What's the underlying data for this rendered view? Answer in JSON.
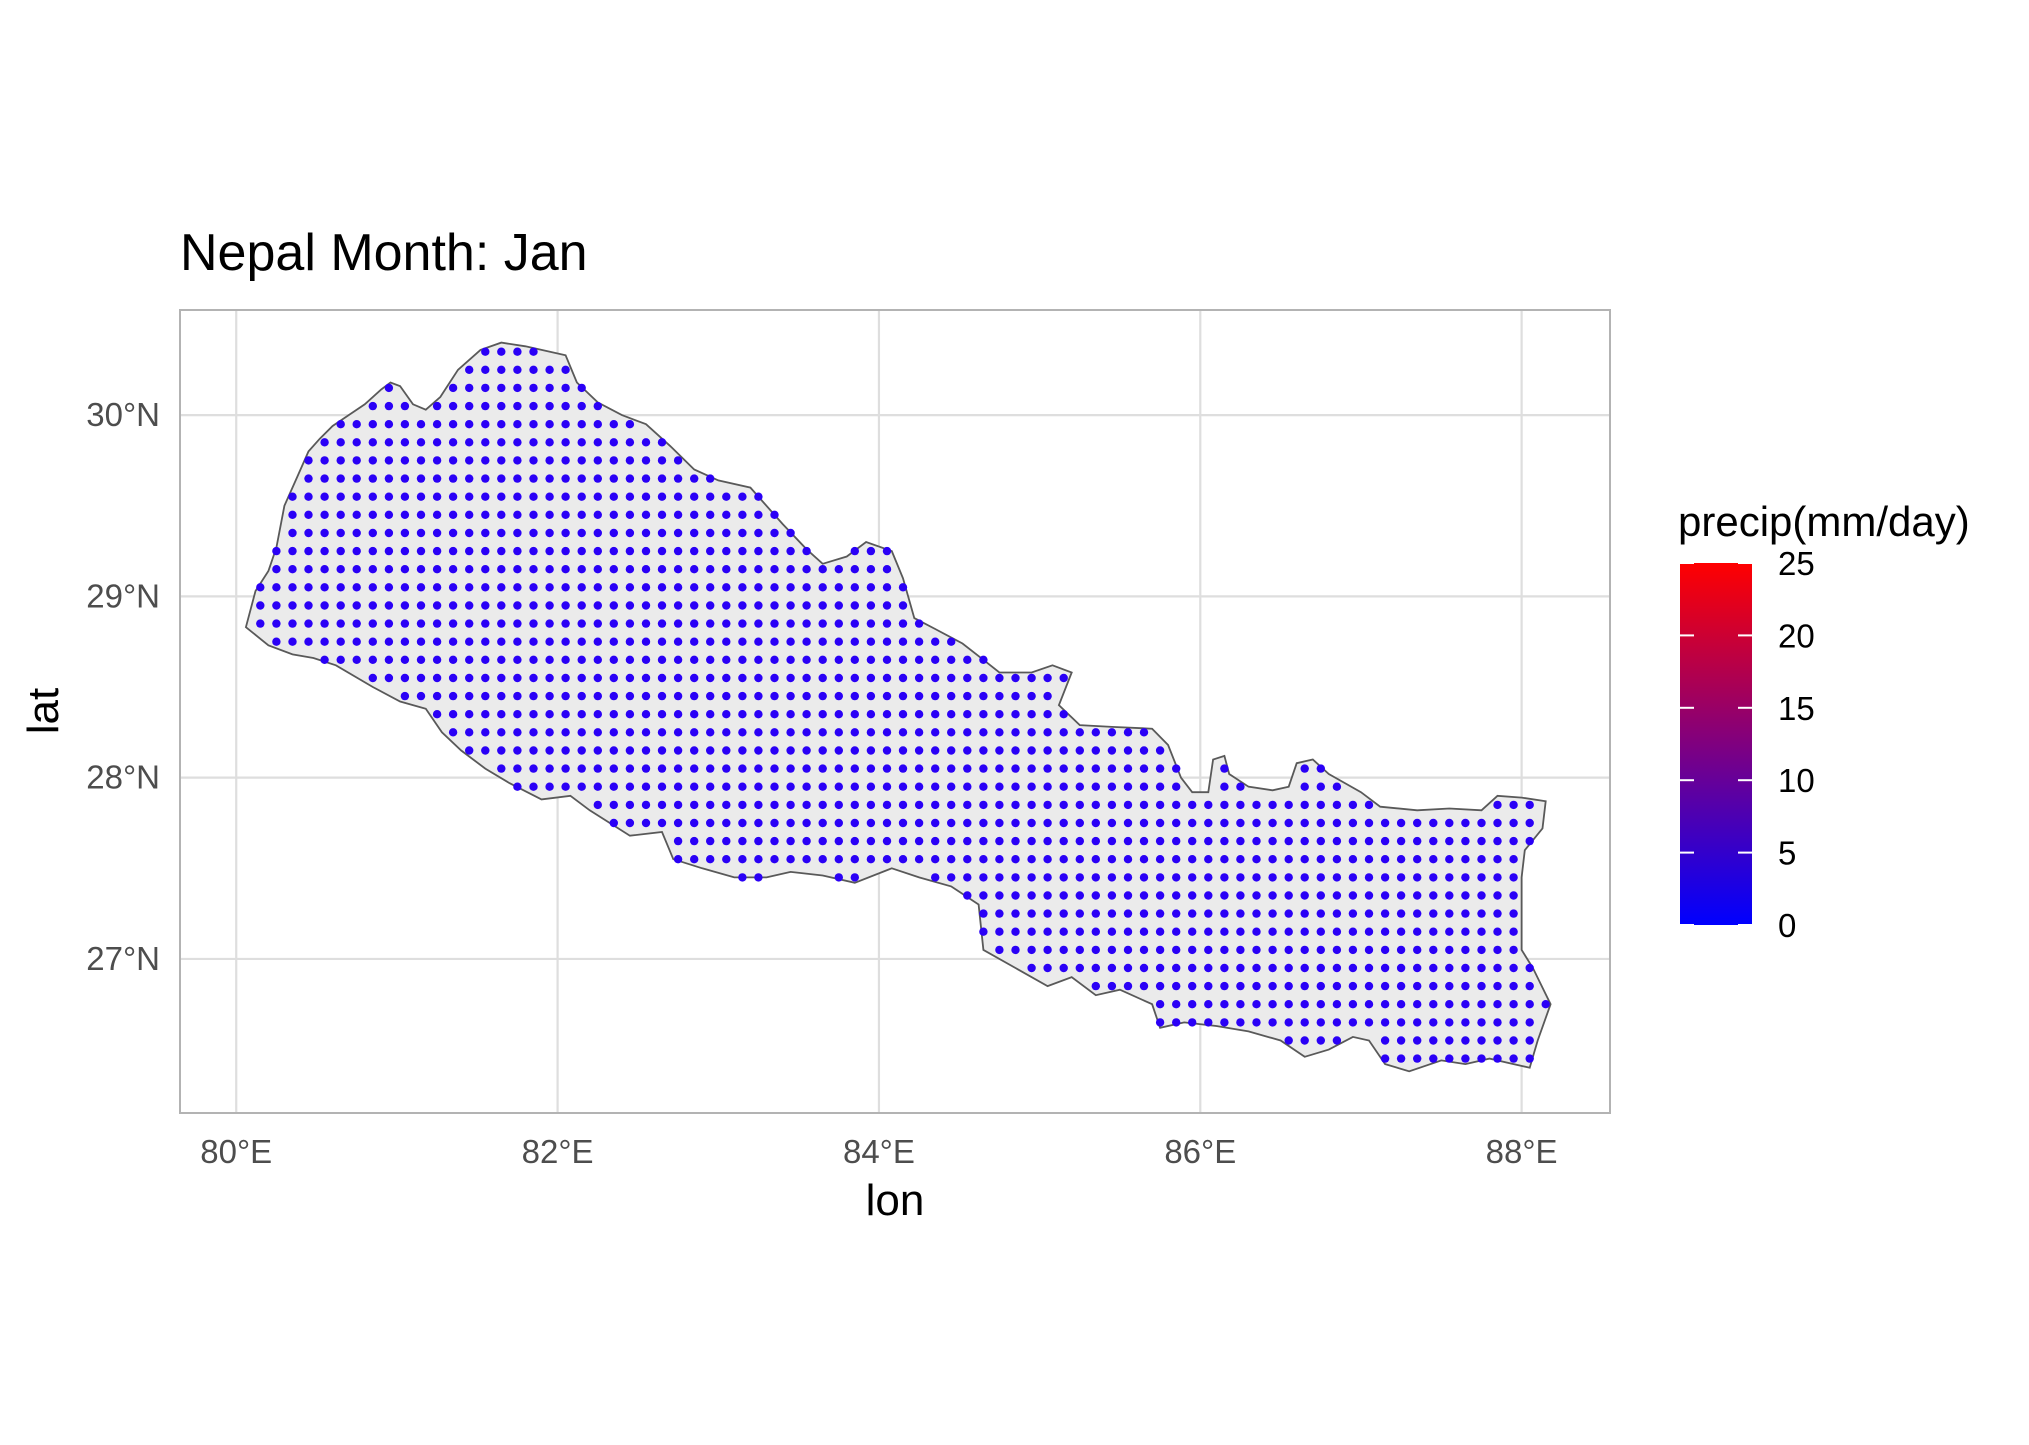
{
  "chart_data": {
    "type": "scatter",
    "title": "Nepal Month: Jan",
    "xlabel": "lon",
    "ylabel": "lat",
    "xlim": [
      79.65,
      88.55
    ],
    "ylim": [
      26.15,
      30.58
    ],
    "x_ticks": [
      80,
      82,
      84,
      86,
      88
    ],
    "x_tick_labels": [
      "80°E",
      "82°E",
      "84°E",
      "86°E",
      "88°E"
    ],
    "y_ticks": [
      27,
      28,
      29,
      30
    ],
    "y_tick_labels": [
      "27°N",
      "28°N",
      "29°N",
      "30°N"
    ],
    "grid": true,
    "grid_spacing_degrees": 0.1,
    "point_values": "precipitation near 0–1 mm/day at every grid point (all points plotted blue)",
    "legend": {
      "title": "precip(mm/day)",
      "placement": "right",
      "min": 0,
      "max": 25,
      "ticks": [
        0,
        5,
        10,
        15,
        20,
        25
      ],
      "colors": [
        "#0000ff",
        "#ff0000"
      ]
    },
    "boundary_lon_lat": [
      [
        80.06,
        28.83
      ],
      [
        80.12,
        29.03
      ],
      [
        80.2,
        29.14
      ],
      [
        80.25,
        29.27
      ],
      [
        80.3,
        29.5
      ],
      [
        80.38,
        29.66
      ],
      [
        80.45,
        29.8
      ],
      [
        80.52,
        29.87
      ],
      [
        80.6,
        29.94
      ],
      [
        80.7,
        30.0
      ],
      [
        80.8,
        30.06
      ],
      [
        80.9,
        30.14
      ],
      [
        80.96,
        30.18
      ],
      [
        81.02,
        30.16
      ],
      [
        81.1,
        30.06
      ],
      [
        81.18,
        30.03
      ],
      [
        81.27,
        30.1
      ],
      [
        81.38,
        30.25
      ],
      [
        81.52,
        30.36
      ],
      [
        81.65,
        30.4
      ],
      [
        81.8,
        30.38
      ],
      [
        82.05,
        30.33
      ],
      [
        82.12,
        30.18
      ],
      [
        82.25,
        30.07
      ],
      [
        82.4,
        30.0
      ],
      [
        82.55,
        29.95
      ],
      [
        82.7,
        29.83
      ],
      [
        82.85,
        29.7
      ],
      [
        83.0,
        29.64
      ],
      [
        83.2,
        29.6
      ],
      [
        83.4,
        29.4
      ],
      [
        83.55,
        29.26
      ],
      [
        83.65,
        29.18
      ],
      [
        83.8,
        29.22
      ],
      [
        83.92,
        29.3
      ],
      [
        84.08,
        29.25
      ],
      [
        84.15,
        29.1
      ],
      [
        84.22,
        28.88
      ],
      [
        84.35,
        28.82
      ],
      [
        84.52,
        28.74
      ],
      [
        84.65,
        28.65
      ],
      [
        84.75,
        28.58
      ],
      [
        84.95,
        28.58
      ],
      [
        85.08,
        28.62
      ],
      [
        85.2,
        28.58
      ],
      [
        85.12,
        28.4
      ],
      [
        85.25,
        28.29
      ],
      [
        85.45,
        28.28
      ],
      [
        85.7,
        28.27
      ],
      [
        85.8,
        28.18
      ],
      [
        85.88,
        28.0
      ],
      [
        85.95,
        27.92
      ],
      [
        86.05,
        27.92
      ],
      [
        86.08,
        28.1
      ],
      [
        86.15,
        28.12
      ],
      [
        86.18,
        28.02
      ],
      [
        86.3,
        27.95
      ],
      [
        86.45,
        27.93
      ],
      [
        86.55,
        27.95
      ],
      [
        86.6,
        28.08
      ],
      [
        86.7,
        28.1
      ],
      [
        86.8,
        28.02
      ],
      [
        86.9,
        27.97
      ],
      [
        87.0,
        27.92
      ],
      [
        87.12,
        27.84
      ],
      [
        87.35,
        27.82
      ],
      [
        87.55,
        27.83
      ],
      [
        87.75,
        27.82
      ],
      [
        87.85,
        27.9
      ],
      [
        88.0,
        27.89
      ],
      [
        88.15,
        27.87
      ],
      [
        88.13,
        27.72
      ],
      [
        88.02,
        27.6
      ],
      [
        88.0,
        27.45
      ],
      [
        88.0,
        27.25
      ],
      [
        88.0,
        27.05
      ],
      [
        88.07,
        26.95
      ],
      [
        88.18,
        26.75
      ],
      [
        88.1,
        26.55
      ],
      [
        88.05,
        26.4
      ],
      [
        87.95,
        26.42
      ],
      [
        87.8,
        26.45
      ],
      [
        87.65,
        26.42
      ],
      [
        87.5,
        26.44
      ],
      [
        87.3,
        26.38
      ],
      [
        87.15,
        26.42
      ],
      [
        87.05,
        26.55
      ],
      [
        86.95,
        26.57
      ],
      [
        86.8,
        26.5
      ],
      [
        86.65,
        26.46
      ],
      [
        86.5,
        26.55
      ],
      [
        86.3,
        26.6
      ],
      [
        86.1,
        26.63
      ],
      [
        85.9,
        26.65
      ],
      [
        85.75,
        26.62
      ],
      [
        85.7,
        26.75
      ],
      [
        85.5,
        26.83
      ],
      [
        85.35,
        26.8
      ],
      [
        85.2,
        26.9
      ],
      [
        85.05,
        26.85
      ],
      [
        84.85,
        26.95
      ],
      [
        84.65,
        27.05
      ],
      [
        84.62,
        27.3
      ],
      [
        84.45,
        27.4
      ],
      [
        84.25,
        27.45
      ],
      [
        84.08,
        27.5
      ],
      [
        83.85,
        27.42
      ],
      [
        83.65,
        27.46
      ],
      [
        83.45,
        27.48
      ],
      [
        83.3,
        27.45
      ],
      [
        83.1,
        27.45
      ],
      [
        82.9,
        27.5
      ],
      [
        82.72,
        27.55
      ],
      [
        82.65,
        27.7
      ],
      [
        82.45,
        27.68
      ],
      [
        82.2,
        27.82
      ],
      [
        82.08,
        27.9
      ],
      [
        81.9,
        27.88
      ],
      [
        81.7,
        27.97
      ],
      [
        81.55,
        28.05
      ],
      [
        81.4,
        28.15
      ],
      [
        81.28,
        28.25
      ],
      [
        81.18,
        28.38
      ],
      [
        81.02,
        28.42
      ],
      [
        80.85,
        28.5
      ],
      [
        80.62,
        28.62
      ],
      [
        80.48,
        28.66
      ],
      [
        80.35,
        28.68
      ],
      [
        80.2,
        28.73
      ],
      [
        80.06,
        28.83
      ]
    ]
  }
}
